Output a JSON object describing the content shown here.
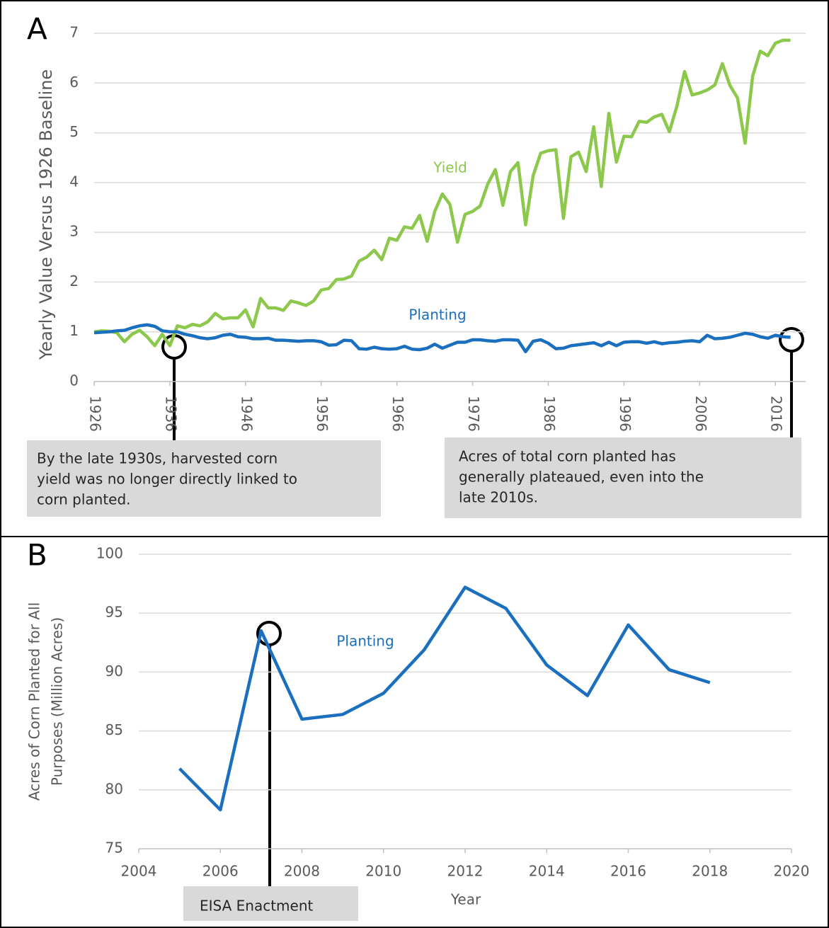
{
  "chart_data": [
    {
      "type": "line",
      "label": "A",
      "ylabel": "Yearly Value Versus 1926 Baseline",
      "x": [
        1926,
        1927,
        1928,
        1929,
        1930,
        1931,
        1932,
        1933,
        1934,
        1935,
        1936,
        1937,
        1938,
        1939,
        1940,
        1941,
        1942,
        1943,
        1944,
        1945,
        1946,
        1947,
        1948,
        1949,
        1950,
        1951,
        1952,
        1953,
        1954,
        1955,
        1956,
        1957,
        1958,
        1959,
        1960,
        1961,
        1962,
        1963,
        1964,
        1965,
        1966,
        1967,
        1968,
        1969,
        1970,
        1971,
        1972,
        1973,
        1974,
        1975,
        1976,
        1977,
        1978,
        1979,
        1980,
        1981,
        1982,
        1983,
        1984,
        1985,
        1986,
        1987,
        1988,
        1989,
        1990,
        1991,
        1992,
        1993,
        1994,
        1995,
        1996,
        1997,
        1998,
        1999,
        2000,
        2001,
        2002,
        2003,
        2004,
        2005,
        2006,
        2007,
        2008,
        2009,
        2010,
        2011,
        2012,
        2013,
        2014,
        2015,
        2016,
        2017,
        2018
      ],
      "series": [
        {
          "name": "Yield",
          "color": "#8cc84b",
          "values": [
            1.0,
            1.02,
            1.01,
            0.98,
            0.8,
            0.95,
            1.03,
            0.9,
            0.72,
            0.95,
            0.72,
            1.12,
            1.08,
            1.15,
            1.12,
            1.2,
            1.37,
            1.26,
            1.28,
            1.28,
            1.44,
            1.1,
            1.67,
            1.48,
            1.48,
            1.43,
            1.62,
            1.58,
            1.53,
            1.62,
            1.84,
            1.87,
            2.05,
            2.06,
            2.12,
            2.42,
            2.5,
            2.64,
            2.45,
            2.88,
            2.84,
            3.11,
            3.08,
            3.34,
            2.82,
            3.42,
            3.77,
            3.56,
            2.8,
            3.36,
            3.42,
            3.53,
            3.97,
            4.26,
            3.54,
            4.22,
            4.4,
            3.15,
            4.14,
            4.59,
            4.64,
            4.66,
            3.28,
            4.52,
            4.61,
            4.22,
            5.12,
            3.92,
            5.39,
            4.41,
            4.93,
            4.92,
            5.23,
            5.21,
            5.32,
            5.37,
            5.02,
            5.54,
            6.23,
            5.76,
            5.8,
            5.86,
            5.96,
            6.39,
            5.95,
            5.7,
            4.79,
            6.14,
            6.64,
            6.55,
            6.8,
            6.86,
            6.86
          ]
        },
        {
          "name": "Planting",
          "color": "#1b6fbf",
          "values": [
            0.98,
            0.99,
            1.0,
            1.02,
            1.03,
            1.08,
            1.12,
            1.14,
            1.11,
            1.02,
            1.0,
            1.0,
            0.95,
            0.92,
            0.88,
            0.86,
            0.88,
            0.93,
            0.95,
            0.9,
            0.89,
            0.86,
            0.86,
            0.87,
            0.83,
            0.83,
            0.82,
            0.81,
            0.82,
            0.82,
            0.8,
            0.73,
            0.74,
            0.83,
            0.82,
            0.66,
            0.65,
            0.69,
            0.66,
            0.65,
            0.66,
            0.71,
            0.65,
            0.64,
            0.67,
            0.75,
            0.67,
            0.73,
            0.79,
            0.79,
            0.84,
            0.84,
            0.82,
            0.81,
            0.84,
            0.84,
            0.83,
            0.6,
            0.81,
            0.84,
            0.77,
            0.66,
            0.67,
            0.72,
            0.74,
            0.76,
            0.78,
            0.72,
            0.79,
            0.72,
            0.79,
            0.8,
            0.8,
            0.77,
            0.8,
            0.76,
            0.78,
            0.79,
            0.81,
            0.82,
            0.8,
            0.93,
            0.86,
            0.87,
            0.89,
            0.93,
            0.97,
            0.95,
            0.9,
            0.87,
            0.93,
            0.9,
            0.89
          ]
        }
      ],
      "xlim": [
        1926,
        2020
      ],
      "xticks": [
        1926,
        1936,
        1946,
        1956,
        1966,
        1976,
        1986,
        1996,
        2006,
        2016
      ],
      "ylim": [
        0,
        7
      ],
      "yticks": [
        0,
        1,
        2,
        3,
        4,
        5,
        6,
        7
      ],
      "grid": true,
      "annotations": [
        {
          "lines": [
            "By the late 1930s, harvested corn",
            "yield was no longer directly linked to",
            "corn planted."
          ]
        },
        {
          "lines": [
            "Acres of total corn planted has",
            "generally plateaued, even into the",
            "late 2010s."
          ]
        }
      ]
    },
    {
      "type": "line",
      "label": "B",
      "xlabel": "Year",
      "ylabel": [
        "Acres of Corn Planted for All",
        "Purposes (Million Acres)"
      ],
      "x": [
        2005,
        2006,
        2007,
        2008,
        2009,
        2010,
        2011,
        2012,
        2013,
        2014,
        2015,
        2016,
        2017,
        2018
      ],
      "series": [
        {
          "name": "Planting",
          "color": "#1b6fbf",
          "values": [
            81.8,
            78.3,
            93.5,
            86.0,
            86.4,
            88.2,
            91.9,
            97.2,
            95.4,
            90.6,
            88.0,
            94.0,
            90.2,
            89.1
          ]
        }
      ],
      "xlim": [
        2004,
        2020
      ],
      "xticks": [
        2004,
        2006,
        2008,
        2010,
        2012,
        2014,
        2016,
        2018,
        2020
      ],
      "ylim": [
        75,
        100
      ],
      "yticks": [
        75,
        80,
        85,
        90,
        95,
        100
      ],
      "grid": true,
      "annotations": [
        {
          "lines": [
            "EISA Enactment"
          ]
        }
      ]
    }
  ]
}
